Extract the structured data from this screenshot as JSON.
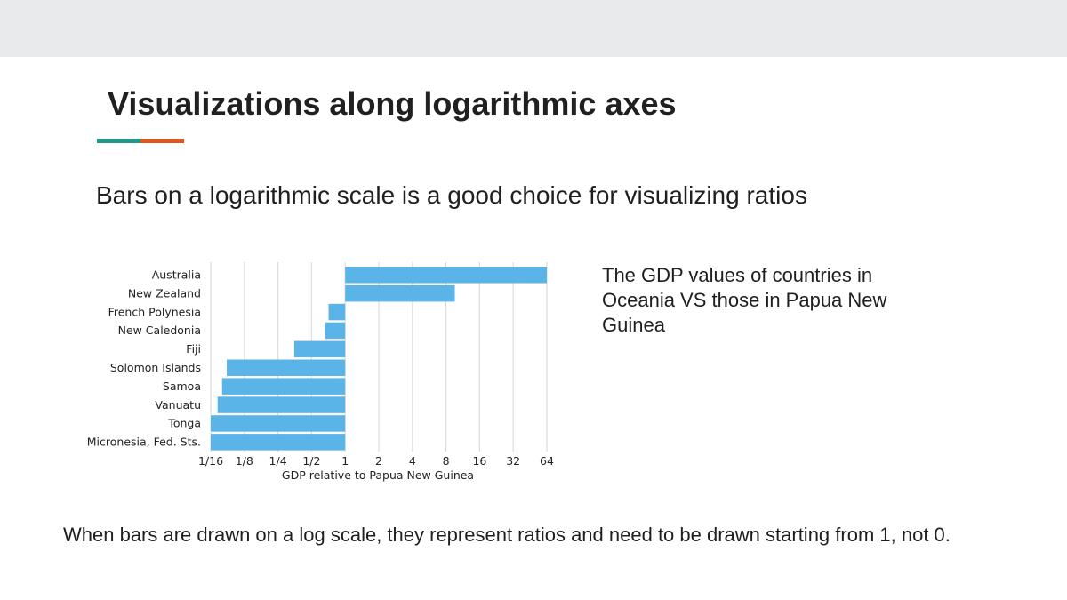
{
  "slide": {
    "title": "Visualizations along logarithmic axes",
    "subtitle": "Bars on a logarithmic scale is a good choice for visualizing ratios",
    "side_note": "The GDP values of countries in Oceania VS those in Papua New Guinea",
    "bottom_note": "When bars are drawn on a log scale, they represent ratios and need to be drawn starting from 1, not 0."
  },
  "colors": {
    "top_band": "#e8eaeb",
    "accent_teal": "#1e9b88",
    "accent_orange": "#e0561b",
    "bar": "#5bb4e8",
    "grid": "#dddddd"
  },
  "chart_data": {
    "type": "bar",
    "orientation": "horizontal",
    "xscale": "log2",
    "baseline": 1,
    "xlabel": "GDP relative to Papua New Guinea",
    "xlim": [
      0.0625,
      64
    ],
    "xticks": [
      0.0625,
      0.125,
      0.25,
      0.5,
      1,
      2,
      4,
      8,
      16,
      32,
      64
    ],
    "xtick_labels": [
      "1/16",
      "1/8",
      "1/4",
      "1/2",
      "1",
      "2",
      "4",
      "8",
      "16",
      "32",
      "64"
    ],
    "grid": true,
    "categories": [
      "Australia",
      "New Zealand",
      "French Polynesia",
      "New Caledonia",
      "Fiji",
      "Solomon Islands",
      "Samoa",
      "Vanuatu",
      "Tonga",
      "Micronesia, Fed. Sts."
    ],
    "values": [
      64,
      9.6,
      0.71,
      0.66,
      0.35,
      0.087,
      0.079,
      0.072,
      0.0625,
      0.0625
    ]
  }
}
